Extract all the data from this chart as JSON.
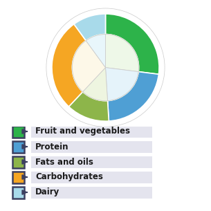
{
  "segments": [
    {
      "label": "Fruit and vegetables",
      "value": 27,
      "color": "#2db34a"
    },
    {
      "label": "Protein",
      "value": 22,
      "color": "#4f9fd4"
    },
    {
      "label": "Fats and oils",
      "value": 13,
      "color": "#8db54a"
    },
    {
      "label": "Carbohydrates",
      "value": 28,
      "color": "#f5a623"
    },
    {
      "label": "Dairy",
      "value": 10,
      "color": "#a8daea"
    }
  ],
  "start_angle": 90,
  "clockwise": true,
  "outer_r": 1.0,
  "inner_r": 0.62,
  "border_color": "#d0d0d0",
  "border_width": 0.1,
  "inner_bg_color": "#f7f7e0",
  "divider_color": "#cccccc",
  "background_color": "#ffffff",
  "legend_items": [
    {
      "label": "Fruit and vegetables",
      "color": "#2db34a"
    },
    {
      "label": "Protein",
      "color": "#4f9fd4"
    },
    {
      "label": "Fats and oils",
      "color": "#8db54a"
    },
    {
      "label": "Carbohydrates",
      "color": "#f5a623"
    },
    {
      "label": "Dairy",
      "color": "#a8daea"
    }
  ],
  "legend_box_color": "#e4e4ee",
  "legend_border_color": "#3d4060",
  "legend_text_color": "#1a1a1a",
  "arrow_color": "#3d4060",
  "figsize": [
    3.05,
    3.05
  ],
  "dpi": 100
}
